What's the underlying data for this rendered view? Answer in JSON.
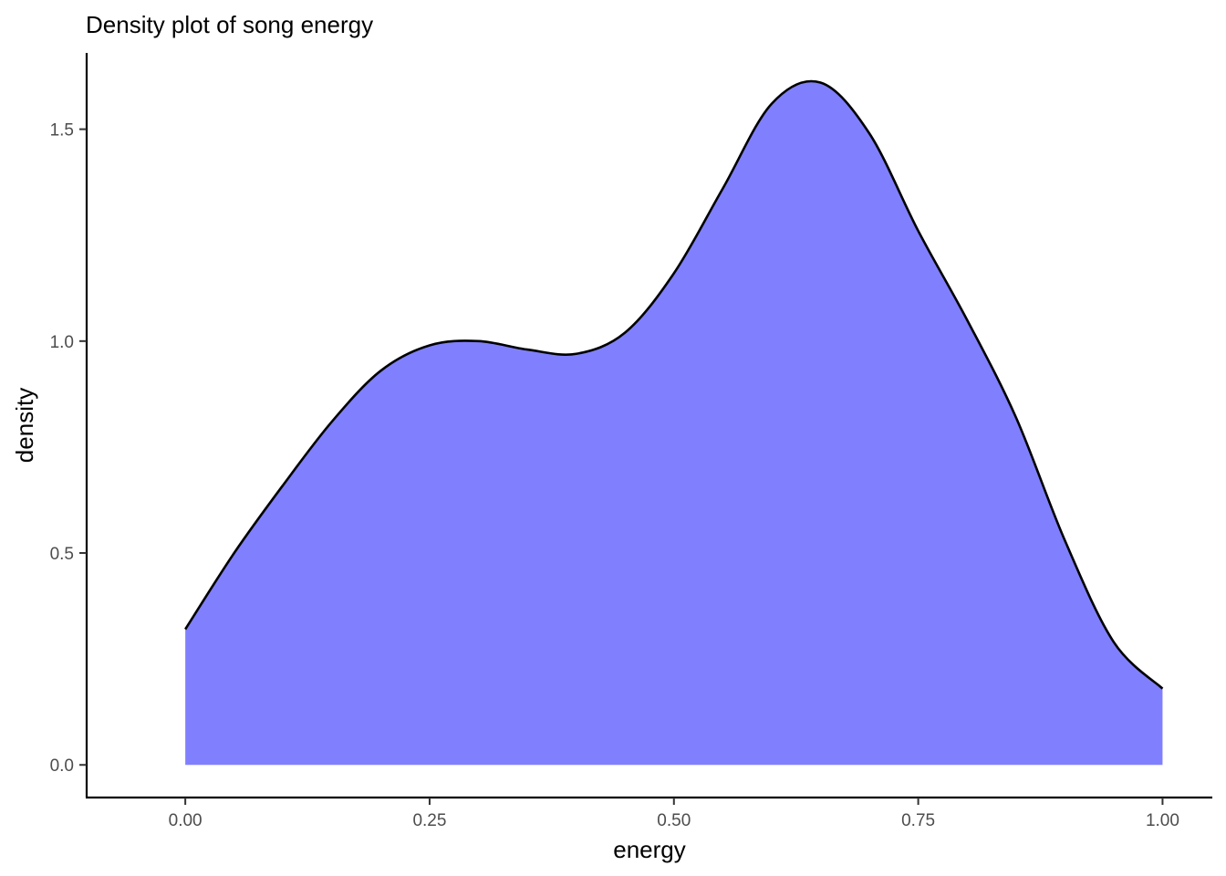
{
  "chart_data": {
    "type": "area",
    "title": "Density plot of song energy",
    "xlabel": "energy",
    "ylabel": "density",
    "xlim": [
      -0.1,
      1.05
    ],
    "ylim": [
      -0.077,
      1.68
    ],
    "xticks": [
      0,
      0.25,
      0.5,
      0.75,
      1
    ],
    "xtick_labels": [
      "0.00",
      "0.25",
      "0.50",
      "0.75",
      "1.00"
    ],
    "yticks": [
      0,
      0.5,
      1,
      1.5
    ],
    "ytick_labels": [
      "0.0",
      "0.5",
      "1.0",
      "1.5"
    ],
    "grid": false,
    "fill_color": "#8080ff",
    "line_color": "#000000",
    "series": [
      {
        "x": [
          0,
          0.05,
          0.1,
          0.15,
          0.2,
          0.25,
          0.3,
          0.35,
          0.4,
          0.45,
          0.5,
          0.55,
          0.6,
          0.65,
          0.7,
          0.75,
          0.8,
          0.85,
          0.9,
          0.95,
          1.0
        ],
        "y": [
          0.32,
          0.5,
          0.66,
          0.81,
          0.93,
          0.99,
          1.0,
          0.98,
          0.97,
          1.02,
          1.16,
          1.36,
          1.56,
          1.61,
          1.49,
          1.26,
          1.05,
          0.82,
          0.53,
          0.29,
          0.18
        ]
      }
    ]
  }
}
